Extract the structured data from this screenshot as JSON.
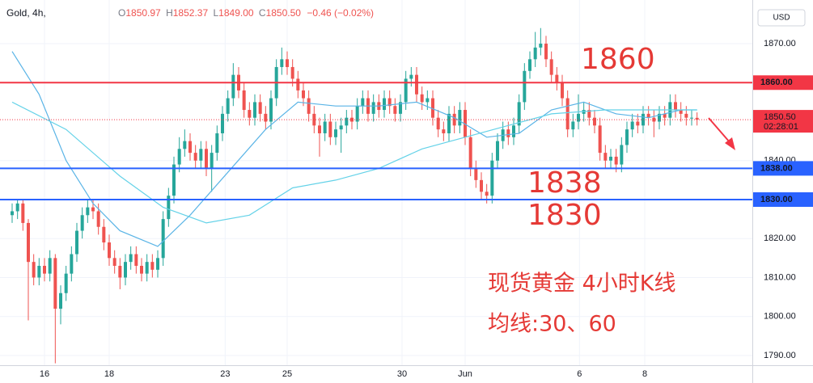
{
  "chart_data": {
    "type": "candlestick",
    "header": {
      "symbol": "Gold, 4h,",
      "ohlc": [
        {
          "label": "O",
          "value": "1850.97"
        },
        {
          "label": "H",
          "value": "1852.37"
        },
        {
          "label": "L",
          "value": "1849.00"
        },
        {
          "label": "C",
          "value": "1850.50"
        }
      ],
      "change": "−0.46 (−0.02%)"
    },
    "currency": "USD",
    "up_color": "#26a69a",
    "down_color": "#ef5350",
    "open": [
      1826,
      1827,
      1829,
      1824,
      1814,
      1810,
      1813,
      1811,
      1815,
      1802,
      1806,
      1811,
      1816,
      1822,
      1826,
      1828,
      1827,
      1823,
      1819,
      1815,
      1813,
      1810,
      1814,
      1816,
      1813,
      1811,
      1814,
      1812,
      1815,
      1825,
      1831,
      1839,
      1843,
      1845,
      1842,
      1840,
      1843,
      1838,
      1842,
      1847,
      1852,
      1856,
      1862,
      1858,
      1853,
      1851,
      1855,
      1852,
      1850,
      1856,
      1864,
      1866,
      1864,
      1861,
      1858,
      1856,
      1852,
      1849,
      1847,
      1850,
      1846,
      1848,
      1849,
      1851,
      1850,
      1854,
      1856,
      1852,
      1855,
      1853,
      1856,
      1854,
      1852,
      1855,
      1861,
      1862,
      1857,
      1855,
      1856,
      1851,
      1848,
      1847,
      1852,
      1849,
      1853,
      1846,
      1838,
      1835,
      1832,
      1831,
      1840,
      1845,
      1848,
      1846,
      1849,
      1855,
      1863,
      1866,
      1869,
      1870,
      1866,
      1862,
      1860,
      1856,
      1848,
      1850,
      1852,
      1853,
      1851,
      1849,
      1842,
      1840,
      1841,
      1839,
      1844,
      1848,
      1850,
      1849,
      1852,
      1851,
      1850,
      1852,
      1851,
      1855,
      1853,
      1852,
      1851,
      1850.97
    ],
    "high": [
      1829,
      1830,
      1830,
      1825,
      1816,
      1815,
      1815,
      1817,
      1816,
      1808,
      1813,
      1818,
      1824,
      1828,
      1830,
      1830,
      1829,
      1825,
      1821,
      1817,
      1815,
      1816,
      1818,
      1818,
      1815,
      1816,
      1816,
      1817,
      1827,
      1833,
      1841,
      1846,
      1848,
      1847,
      1844,
      1845,
      1845,
      1844,
      1849,
      1854,
      1858,
      1865,
      1864,
      1860,
      1855,
      1857,
      1857,
      1854,
      1858,
      1866,
      1869,
      1868,
      1866,
      1863,
      1860,
      1858,
      1854,
      1851,
      1852,
      1852,
      1850,
      1851,
      1853,
      1853,
      1856,
      1858,
      1858,
      1857,
      1857,
      1858,
      1858,
      1856,
      1857,
      1863,
      1864,
      1864,
      1859,
      1858,
      1858,
      1853,
      1850,
      1854,
      1854,
      1855,
      1855,
      1848,
      1840,
      1837,
      1834,
      1842,
      1847,
      1850,
      1850,
      1851,
      1857,
      1865,
      1868,
      1873,
      1874,
      1872,
      1868,
      1864,
      1862,
      1858,
      1852,
      1857,
      1855,
      1855,
      1853,
      1851,
      1844,
      1843,
      1843,
      1846,
      1850,
      1852,
      1852,
      1854,
      1854,
      1853,
      1854,
      1854,
      1857,
      1857,
      1855,
      1854,
      1853,
      1852.37
    ],
    "low": [
      1824,
      1825,
      1822,
      1799,
      1808,
      1808,
      1809,
      1809,
      1788,
      1798,
      1804,
      1809,
      1814,
      1820,
      1824,
      1825,
      1821,
      1817,
      1813,
      1811,
      1807,
      1808,
      1812,
      1811,
      1809,
      1809,
      1810,
      1810,
      1813,
      1823,
      1829,
      1837,
      1841,
      1840,
      1838,
      1838,
      1836,
      1832,
      1840,
      1845,
      1850,
      1854,
      1856,
      1851,
      1849,
      1849,
      1850,
      1848,
      1848,
      1854,
      1862,
      1862,
      1859,
      1856,
      1854,
      1850,
      1847,
      1841,
      1845,
      1844,
      1844,
      1842,
      1847,
      1848,
      1848,
      1852,
      1850,
      1850,
      1851,
      1851,
      1852,
      1850,
      1850,
      1853,
      1859,
      1855,
      1853,
      1853,
      1849,
      1846,
      1845,
      1845,
      1847,
      1847,
      1844,
      1836,
      1833,
      1830,
      1829,
      1829,
      1838,
      1843,
      1844,
      1844,
      1847,
      1853,
      1861,
      1864,
      1867,
      1864,
      1860,
      1858,
      1854,
      1846,
      1846,
      1848,
      1850,
      1849,
      1847,
      1840,
      1838,
      1838,
      1837,
      1837,
      1842,
      1846,
      1847,
      1847,
      1849,
      1846,
      1848,
      1849,
      1849,
      1851,
      1850,
      1849,
      1849,
      1849
    ],
    "close": [
      1827,
      1829,
      1824,
      1814,
      1810,
      1813,
      1811,
      1815,
      1802,
      1806,
      1811,
      1816,
      1822,
      1826,
      1828,
      1827,
      1823,
      1819,
      1815,
      1813,
      1810,
      1814,
      1816,
      1813,
      1811,
      1814,
      1812,
      1815,
      1825,
      1831,
      1839,
      1843,
      1845,
      1842,
      1840,
      1843,
      1838,
      1842,
      1847,
      1852,
      1856,
      1862,
      1858,
      1853,
      1851,
      1855,
      1852,
      1850,
      1856,
      1864,
      1866,
      1864,
      1861,
      1858,
      1856,
      1852,
      1849,
      1847,
      1850,
      1846,
      1848,
      1849,
      1851,
      1850,
      1854,
      1856,
      1852,
      1855,
      1853,
      1856,
      1854,
      1852,
      1855,
      1861,
      1862,
      1857,
      1855,
      1856,
      1851,
      1848,
      1847,
      1852,
      1849,
      1853,
      1846,
      1838,
      1835,
      1832,
      1831,
      1840,
      1845,
      1848,
      1846,
      1849,
      1855,
      1863,
      1866,
      1869,
      1870,
      1866,
      1862,
      1860,
      1856,
      1848,
      1850,
      1852,
      1853,
      1851,
      1849,
      1842,
      1840,
      1841,
      1839,
      1844,
      1848,
      1850,
      1849,
      1852,
      1851,
      1850,
      1852,
      1851,
      1855,
      1853,
      1852,
      1851,
      1851,
      1850.5
    ],
    "series": [
      {
        "color": "#5ab4e6",
        "x": [
          0,
          5,
          10,
          15,
          20,
          27,
          33,
          40,
          47,
          53,
          60,
          68,
          75,
          82,
          88,
          94,
          100,
          106,
          112,
          118,
          124,
          127
        ],
        "values": [
          1868,
          1857,
          1840,
          1829,
          1822,
          1818,
          1826,
          1837,
          1848,
          1855,
          1854,
          1854,
          1855,
          1851,
          1846,
          1847,
          1853,
          1855,
          1852,
          1851,
          1853,
          1853
        ]
      },
      {
        "color": "#64d2e8",
        "x": [
          0,
          10,
          20,
          28,
          36,
          44,
          52,
          60,
          68,
          76,
          84,
          92,
          100,
          110,
          120,
          127
        ],
        "values": [
          1855,
          1848,
          1836,
          1828,
          1824,
          1826,
          1833,
          1835,
          1838,
          1843,
          1846,
          1849,
          1852,
          1853,
          1853,
          1853
        ]
      }
    ],
    "levels": [
      {
        "value": 1860,
        "label": "1860.00",
        "color": "#f23645"
      },
      {
        "value": 1838,
        "label": "1838.00",
        "color": "#2962ff"
      },
      {
        "value": 1830,
        "label": "1830.00",
        "color": "#2962ff"
      }
    ],
    "last_price": {
      "value": 1850.5,
      "label": "1850.50",
      "countdown": "02:28:01",
      "color": "#f23645"
    },
    "annotations": [
      "1860",
      "1838",
      "1830",
      "现货黄金 4小时K线",
      "均线:30、60"
    ],
    "xlim": [
      -2.25,
      137.25
    ],
    "ylim": [
      1787.5,
      1881.2
    ],
    "xticks": [
      {
        "value": 6,
        "label": "16"
      },
      {
        "value": 18,
        "label": "18"
      },
      {
        "value": 39.5,
        "label": "23"
      },
      {
        "value": 51,
        "label": "25"
      },
      {
        "value": 72.3,
        "label": "30"
      },
      {
        "value": 84,
        "label": "Jun"
      },
      {
        "value": 105.2,
        "label": "6"
      },
      {
        "value": 117.3,
        "label": "8"
      }
    ],
    "yticks": [
      {
        "value": 1790,
        "label": "1790.00"
      },
      {
        "value": 1800,
        "label": "1800.00"
      },
      {
        "value": 1810,
        "label": "1810.00"
      },
      {
        "value": 1820,
        "label": "1820.00"
      },
      {
        "value": 1840,
        "label": "1840.00"
      },
      {
        "value": 1870,
        "label": "1870.00"
      }
    ],
    "grid": true
  }
}
